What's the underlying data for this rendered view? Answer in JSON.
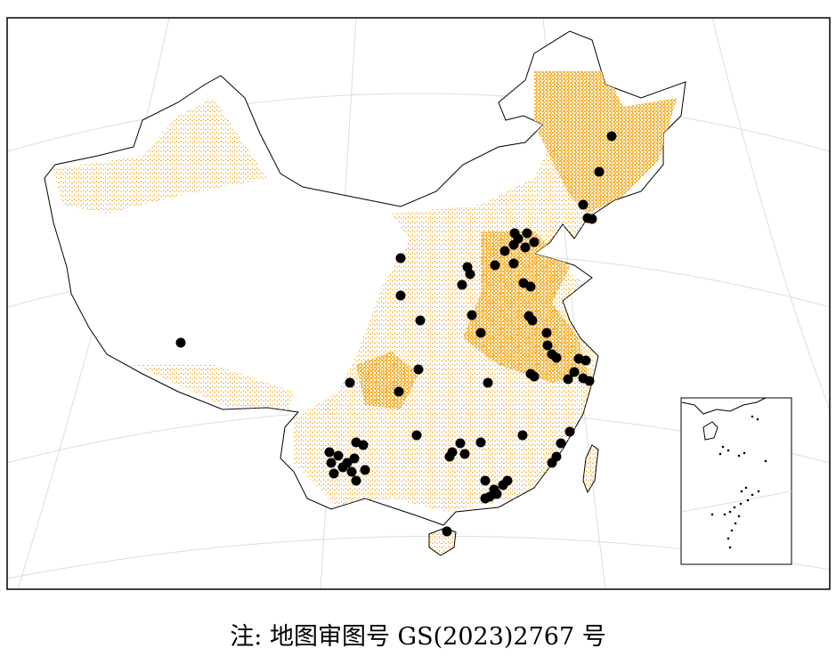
{
  "caption": "注: 地图审图号 GS(2023)2767 号",
  "colors": {
    "cropland": "#f7b640",
    "site_marker": "#000000",
    "graticule": "#dddddd",
    "border": "#000000"
  },
  "map": {
    "type": "point-map",
    "region": "China",
    "inset": "South China Sea islands"
  }
}
